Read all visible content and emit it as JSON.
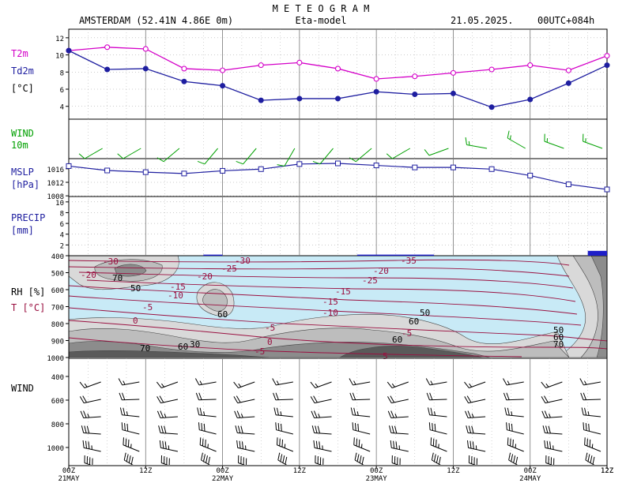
{
  "header": {
    "title": "M E T E O G R A M",
    "station": "AMSTERDAM (52.41N 4.86E  0m)",
    "model": "Eta-model",
    "date": "21.05.2025.",
    "run": "00UTC+084h"
  },
  "colors": {
    "t2m": "#d400c8",
    "td2m": "#1e1ea0",
    "wind10m": "#00a000",
    "mslp": "#2020a0",
    "precip": "#1e1ec8",
    "rh_fill_light": "#c8eaf6",
    "rh_gray": [
      "#d9d9d9",
      "#bdbdbd",
      "#8c8c8c",
      "#5a5a5a"
    ],
    "temp_contour": "#9a1040"
  },
  "panels": {
    "temp": {
      "label1": "T2m",
      "label2": "Td2m",
      "unit": "[°C]",
      "ticks": [
        "4",
        "6",
        "8",
        "10",
        "12"
      ]
    },
    "wind10m": {
      "label1": "WIND",
      "label2": "10m"
    },
    "mslp": {
      "label1": "MSLP",
      "label2": "[hPa]",
      "ticks": [
        "1008",
        "1012",
        "1016"
      ]
    },
    "precip": {
      "label1": "PRECIP",
      "label2": "[mm]",
      "ticks": [
        "2",
        "4",
        "6",
        "8",
        "10"
      ]
    },
    "rh": {
      "label1": "RH [%]",
      "label2": "T [°C]",
      "ticks": [
        "400",
        "500",
        "600",
        "700",
        "800",
        "900",
        "1000"
      ]
    },
    "windprof": {
      "label1": "WIND",
      "ticks": [
        "400",
        "600",
        "800",
        "1000"
      ]
    }
  },
  "time_axis": {
    "labels": [
      "00Z",
      "12Z",
      "00Z",
      "12Z",
      "00Z",
      "12Z",
      "00Z",
      "12Z"
    ],
    "days": [
      "21MAY",
      "22MAY",
      "23MAY",
      "24MAY"
    ]
  },
  "chart_data": [
    {
      "type": "line",
      "name": "temperature",
      "x_hours": [
        0,
        6,
        12,
        18,
        24,
        30,
        36,
        42,
        48,
        54,
        60,
        66,
        72,
        78,
        84
      ],
      "series": [
        {
          "name": "T2m",
          "values": [
            10.5,
            10.9,
            10.7,
            8.4,
            8.2,
            8.8,
            9.1,
            8.4,
            7.2,
            7.5,
            7.9,
            8.3,
            8.8,
            8.2,
            9.9
          ]
        },
        {
          "name": "Td2m",
          "values": [
            10.5,
            8.3,
            8.4,
            6.9,
            6.4,
            4.7,
            4.9,
            4.9,
            5.7,
            5.4,
            5.5,
            3.9,
            4.8,
            6.7,
            8.8
          ]
        }
      ],
      "ylim": [
        2.5,
        13
      ]
    },
    {
      "type": "line",
      "name": "mslp",
      "x_hours": [
        0,
        6,
        12,
        18,
        24,
        30,
        36,
        42,
        48,
        54,
        60,
        66,
        72,
        78,
        84
      ],
      "series": [
        {
          "name": "MSLP",
          "values": [
            1016.8,
            1015.5,
            1015.0,
            1014.6,
            1015.4,
            1015.9,
            1017.4,
            1017.6,
            1017.0,
            1016.4,
            1016.4,
            1015.9,
            1014.0,
            1011.4,
            1009.9
          ]
        }
      ],
      "ylim": [
        1007.8,
        1019
      ]
    },
    {
      "type": "bar",
      "name": "precip",
      "bars": [
        {
          "from_h": 21,
          "to_h": 24,
          "value": 0.2
        },
        {
          "from_h": 45,
          "to_h": 57,
          "value": 0.2
        },
        {
          "from_h": 81,
          "to_h": 84,
          "value": 0.9
        }
      ],
      "ylim": [
        0,
        11
      ]
    },
    {
      "type": "line",
      "name": "temperature_contours",
      "contour_labels": [
        "-35",
        "-30",
        "-30",
        "-25",
        "-25",
        "-20",
        "-20",
        "-20",
        "-15",
        "-15",
        "-15",
        "-10",
        "-10",
        "-10",
        "-5",
        "-5",
        "-5",
        "-5",
        "0",
        "0",
        "5",
        "5"
      ],
      "rh_labels": [
        "70",
        "50",
        "60",
        "50",
        "60",
        "50",
        "60",
        "70",
        "30",
        "60",
        "70",
        "60"
      ]
    },
    {
      "type": "line",
      "name": "wind_10m",
      "x_hours": [
        0,
        6,
        12,
        18,
        24,
        30,
        36,
        42,
        48,
        54,
        60,
        66,
        72,
        78,
        84
      ],
      "direction_deg": [
        250,
        240,
        240,
        230,
        220,
        220,
        210,
        220,
        230,
        240,
        250,
        280,
        300,
        290,
        290
      ],
      "speed_kt": [
        10,
        10,
        10,
        10,
        10,
        10,
        10,
        10,
        10,
        10,
        10,
        15,
        15,
        15,
        15
      ]
    }
  ]
}
